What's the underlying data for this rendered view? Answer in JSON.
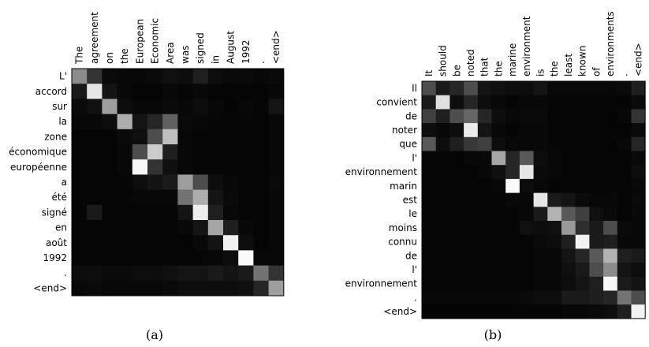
{
  "chart_data": [
    {
      "type": "heatmap",
      "caption": "(a)",
      "x_labels": [
        "The",
        "agreement",
        "on",
        "the",
        "European",
        "Economic",
        "Area",
        "was",
        "signed",
        "in",
        "August",
        "1992",
        ".",
        "<end>"
      ],
      "y_labels": [
        "L'",
        "accord",
        "sur",
        "la",
        "zone",
        "économique",
        "européenne",
        "a",
        "été",
        "signé",
        "en",
        "août",
        "1992",
        ".",
        "<end>"
      ],
      "value_range": [
        0,
        1
      ],
      "colormap": "gray",
      "values": [
        [
          0.55,
          0.2,
          0.04,
          0.03,
          0.03,
          0.04,
          0.06,
          0.05,
          0.12,
          0.05,
          0.04,
          0.04,
          0.03,
          0.04
        ],
        [
          0.1,
          0.9,
          0.08,
          0.03,
          0.02,
          0.02,
          0.03,
          0.02,
          0.03,
          0.02,
          0.02,
          0.02,
          0.02,
          0.03
        ],
        [
          0.04,
          0.06,
          0.62,
          0.05,
          0.03,
          0.03,
          0.04,
          0.03,
          0.05,
          0.03,
          0.02,
          0.03,
          0.02,
          0.08
        ],
        [
          0.03,
          0.03,
          0.05,
          0.68,
          0.08,
          0.15,
          0.38,
          0.04,
          0.03,
          0.02,
          0.02,
          0.02,
          0.02,
          0.03
        ],
        [
          0.02,
          0.02,
          0.02,
          0.04,
          0.06,
          0.3,
          0.75,
          0.03,
          0.02,
          0.02,
          0.02,
          0.02,
          0.02,
          0.03
        ],
        [
          0.02,
          0.02,
          0.02,
          0.03,
          0.3,
          0.8,
          0.12,
          0.03,
          0.02,
          0.02,
          0.02,
          0.02,
          0.02,
          0.03
        ],
        [
          0.02,
          0.02,
          0.02,
          0.03,
          0.97,
          0.2,
          0.06,
          0.03,
          0.02,
          0.02,
          0.02,
          0.02,
          0.02,
          0.03
        ],
        [
          0.02,
          0.02,
          0.02,
          0.02,
          0.05,
          0.08,
          0.1,
          0.62,
          0.3,
          0.05,
          0.03,
          0.02,
          0.02,
          0.04
        ],
        [
          0.02,
          0.02,
          0.02,
          0.02,
          0.03,
          0.03,
          0.03,
          0.45,
          0.68,
          0.08,
          0.04,
          0.02,
          0.02,
          0.03
        ],
        [
          0.02,
          0.1,
          0.02,
          0.02,
          0.02,
          0.02,
          0.02,
          0.08,
          0.93,
          0.12,
          0.03,
          0.02,
          0.02,
          0.03
        ],
        [
          0.02,
          0.02,
          0.02,
          0.02,
          0.02,
          0.02,
          0.02,
          0.03,
          0.08,
          0.65,
          0.12,
          0.03,
          0.02,
          0.03
        ],
        [
          0.02,
          0.02,
          0.02,
          0.02,
          0.02,
          0.02,
          0.02,
          0.02,
          0.03,
          0.08,
          0.95,
          0.05,
          0.02,
          0.03
        ],
        [
          0.02,
          0.02,
          0.02,
          0.02,
          0.02,
          0.02,
          0.02,
          0.02,
          0.02,
          0.03,
          0.05,
          0.98,
          0.03,
          0.03
        ],
        [
          0.05,
          0.05,
          0.04,
          0.04,
          0.05,
          0.05,
          0.06,
          0.08,
          0.08,
          0.1,
          0.08,
          0.1,
          0.45,
          0.2
        ],
        [
          0.03,
          0.04,
          0.03,
          0.03,
          0.03,
          0.03,
          0.04,
          0.05,
          0.05,
          0.05,
          0.05,
          0.06,
          0.15,
          0.62
        ]
      ]
    },
    {
      "type": "heatmap",
      "caption": "(b)",
      "x_labels": [
        "It",
        "should",
        "be",
        "noted",
        "that",
        "the",
        "marine",
        "environment",
        "is",
        "the",
        "least",
        "known",
        "of",
        "environments",
        ".",
        "<end>"
      ],
      "y_labels": [
        "Il",
        "convient",
        "de",
        "noter",
        "que",
        "l'",
        "environnement",
        "marin",
        "est",
        "le",
        "moins",
        "connu",
        "de",
        "l'",
        "environnement",
        ".",
        "<end>"
      ],
      "value_range": [
        0,
        1
      ],
      "colormap": "gray",
      "values": [
        [
          0.3,
          0.1,
          0.15,
          0.3,
          0.08,
          0.06,
          0.05,
          0.05,
          0.08,
          0.03,
          0.03,
          0.03,
          0.03,
          0.03,
          0.04,
          0.12
        ],
        [
          0.1,
          0.88,
          0.05,
          0.15,
          0.05,
          0.03,
          0.02,
          0.03,
          0.03,
          0.02,
          0.02,
          0.02,
          0.02,
          0.02,
          0.02,
          0.04
        ],
        [
          0.25,
          0.12,
          0.3,
          0.4,
          0.15,
          0.05,
          0.03,
          0.04,
          0.04,
          0.02,
          0.02,
          0.02,
          0.02,
          0.02,
          0.03,
          0.2
        ],
        [
          0.05,
          0.03,
          0.05,
          0.92,
          0.08,
          0.03,
          0.02,
          0.03,
          0.03,
          0.02,
          0.02,
          0.02,
          0.02,
          0.02,
          0.02,
          0.04
        ],
        [
          0.35,
          0.05,
          0.12,
          0.22,
          0.25,
          0.05,
          0.03,
          0.03,
          0.03,
          0.02,
          0.02,
          0.02,
          0.02,
          0.02,
          0.03,
          0.15
        ],
        [
          0.02,
          0.02,
          0.02,
          0.03,
          0.03,
          0.65,
          0.15,
          0.35,
          0.05,
          0.03,
          0.02,
          0.02,
          0.02,
          0.02,
          0.02,
          0.03
        ],
        [
          0.02,
          0.02,
          0.02,
          0.02,
          0.03,
          0.06,
          0.15,
          0.9,
          0.04,
          0.03,
          0.02,
          0.02,
          0.02,
          0.02,
          0.02,
          0.05
        ],
        [
          0.02,
          0.02,
          0.02,
          0.02,
          0.02,
          0.03,
          0.98,
          0.05,
          0.03,
          0.02,
          0.02,
          0.02,
          0.02,
          0.02,
          0.02,
          0.03
        ],
        [
          0.02,
          0.02,
          0.02,
          0.02,
          0.02,
          0.02,
          0.03,
          0.03,
          0.9,
          0.1,
          0.08,
          0.04,
          0.03,
          0.03,
          0.02,
          0.04
        ],
        [
          0.02,
          0.02,
          0.02,
          0.02,
          0.02,
          0.02,
          0.02,
          0.03,
          0.1,
          0.7,
          0.35,
          0.25,
          0.06,
          0.04,
          0.02,
          0.03
        ],
        [
          0.02,
          0.02,
          0.02,
          0.02,
          0.02,
          0.02,
          0.02,
          0.06,
          0.05,
          0.06,
          0.6,
          0.18,
          0.1,
          0.3,
          0.04,
          0.03
        ],
        [
          0.02,
          0.02,
          0.02,
          0.02,
          0.02,
          0.02,
          0.02,
          0.02,
          0.04,
          0.05,
          0.12,
          0.95,
          0.1,
          0.12,
          0.03,
          0.03
        ],
        [
          0.02,
          0.02,
          0.02,
          0.02,
          0.02,
          0.02,
          0.02,
          0.02,
          0.03,
          0.03,
          0.08,
          0.15,
          0.35,
          0.7,
          0.12,
          0.1
        ],
        [
          0.02,
          0.02,
          0.02,
          0.02,
          0.02,
          0.02,
          0.02,
          0.02,
          0.03,
          0.03,
          0.06,
          0.1,
          0.3,
          0.55,
          0.08,
          0.05
        ],
        [
          0.02,
          0.02,
          0.02,
          0.02,
          0.02,
          0.02,
          0.02,
          0.02,
          0.03,
          0.03,
          0.05,
          0.08,
          0.12,
          0.97,
          0.1,
          0.08
        ],
        [
          0.03,
          0.03,
          0.03,
          0.03,
          0.03,
          0.03,
          0.03,
          0.04,
          0.05,
          0.05,
          0.1,
          0.1,
          0.12,
          0.15,
          0.45,
          0.3
        ],
        [
          0.02,
          0.02,
          0.02,
          0.02,
          0.02,
          0.02,
          0.02,
          0.02,
          0.02,
          0.02,
          0.03,
          0.03,
          0.04,
          0.05,
          0.12,
          0.95
        ]
      ]
    }
  ]
}
